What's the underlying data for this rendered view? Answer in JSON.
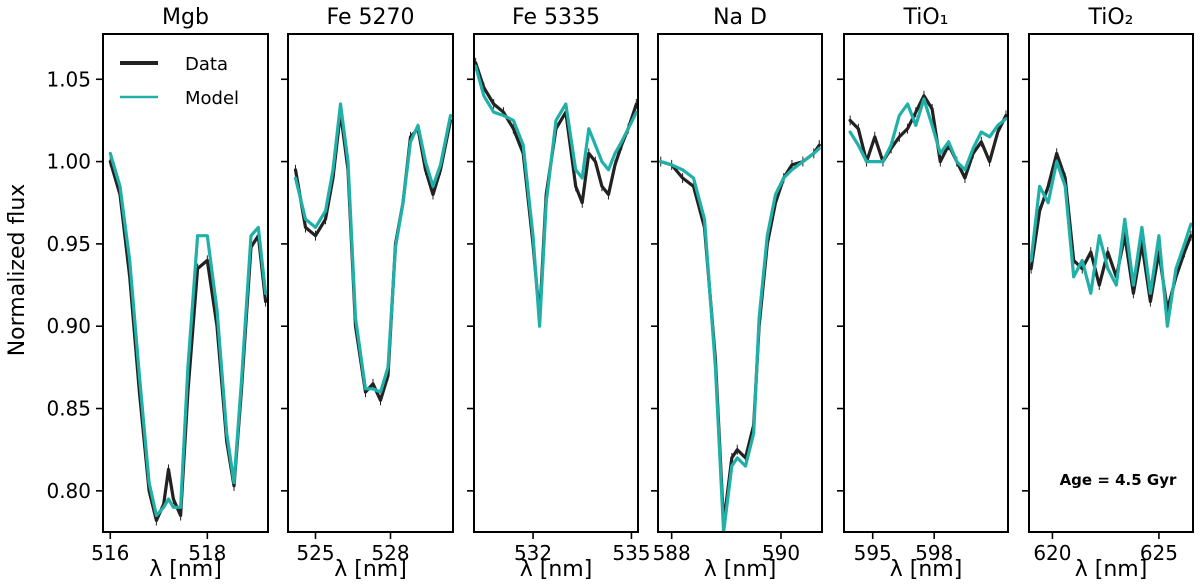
{
  "figure": {
    "ylabel": "Normalized flux",
    "annotation": "Age = 4.5 Gyr",
    "colors": {
      "data": "#222222",
      "model": "#20b0a8"
    }
  },
  "chart_data": [
    {
      "type": "line",
      "title": "Mgb",
      "xlabel": "λ [nm]",
      "xlim": [
        515.85,
        519.25
      ],
      "ylim": [
        0.775,
        1.0775
      ],
      "xticks": [
        516,
        518
      ],
      "yticks": [
        0.8,
        0.85,
        0.9,
        0.95,
        1.0,
        1.05
      ],
      "ytick_labels": [
        "0.80",
        "0.85",
        "0.90",
        "0.95",
        "1.00",
        "1.05"
      ],
      "legend": {
        "position": "top-left",
        "entries": [
          "Data",
          "Model"
        ]
      },
      "series": [
        {
          "name": "Data",
          "x": [
            516.0,
            516.2,
            516.4,
            516.6,
            516.8,
            516.95,
            517.1,
            517.2,
            517.3,
            517.45,
            517.6,
            517.8,
            518.0,
            518.2,
            518.4,
            518.55,
            518.7,
            518.9,
            519.05,
            519.2
          ],
          "y": [
            1.0,
            0.98,
            0.93,
            0.86,
            0.8,
            0.782,
            0.792,
            0.813,
            0.795,
            0.785,
            0.86,
            0.935,
            0.94,
            0.9,
            0.83,
            0.803,
            0.86,
            0.948,
            0.955,
            0.915
          ]
        },
        {
          "name": "Model",
          "x": [
            516.0,
            516.2,
            516.4,
            516.6,
            516.8,
            516.95,
            517.1,
            517.2,
            517.3,
            517.45,
            517.6,
            517.8,
            518.0,
            518.2,
            518.4,
            518.55,
            518.7,
            518.9,
            519.05,
            519.2
          ],
          "y": [
            1.005,
            0.985,
            0.94,
            0.87,
            0.805,
            0.785,
            0.79,
            0.795,
            0.79,
            0.79,
            0.875,
            0.955,
            0.955,
            0.91,
            0.835,
            0.805,
            0.865,
            0.955,
            0.96,
            0.92
          ]
        }
      ]
    },
    {
      "type": "line",
      "title": "Fe 5270",
      "xlabel": "λ [nm]",
      "xlim": [
        523.9,
        530.5
      ],
      "ylim": [
        0.775,
        1.0775
      ],
      "xticks": [
        525,
        528
      ],
      "yticks": [
        0.8,
        0.85,
        0.9,
        0.95,
        1.0,
        1.05
      ],
      "series": [
        {
          "name": "Data",
          "x": [
            524.2,
            524.6,
            525.0,
            525.4,
            525.7,
            526.0,
            526.3,
            526.6,
            527.0,
            527.3,
            527.6,
            527.9,
            528.2,
            528.5,
            528.8,
            529.1,
            529.4,
            529.7,
            530.0,
            530.4
          ],
          "y": [
            0.995,
            0.96,
            0.955,
            0.965,
            0.99,
            1.03,
            0.995,
            0.9,
            0.86,
            0.865,
            0.855,
            0.87,
            0.95,
            0.975,
            1.015,
            1.02,
            0.995,
            0.98,
            0.995,
            1.025
          ]
        },
        {
          "name": "Model",
          "x": [
            524.2,
            524.6,
            525.0,
            525.4,
            525.7,
            526.0,
            526.3,
            526.6,
            527.0,
            527.3,
            527.6,
            527.9,
            528.2,
            528.5,
            528.8,
            529.1,
            529.4,
            529.7,
            530.0,
            530.4
          ],
          "y": [
            0.99,
            0.965,
            0.96,
            0.97,
            0.995,
            1.035,
            1.0,
            0.905,
            0.862,
            0.862,
            0.86,
            0.875,
            0.948,
            0.975,
            1.012,
            1.022,
            1.0,
            0.985,
            0.998,
            1.028
          ]
        }
      ]
    },
    {
      "type": "line",
      "title": "Fe 5335",
      "xlabel": "λ [nm]",
      "xlim": [
        530.2,
        535.2
      ],
      "ylim": [
        0.775,
        1.0775
      ],
      "xticks": [
        532,
        535
      ],
      "yticks": [
        0.8,
        0.85,
        0.9,
        0.95,
        1.0,
        1.05
      ],
      "series": [
        {
          "name": "Data",
          "x": [
            530.25,
            530.5,
            530.8,
            531.1,
            531.4,
            531.7,
            532.0,
            532.2,
            532.4,
            532.7,
            533.0,
            533.3,
            533.5,
            533.7,
            533.9,
            534.1,
            534.3,
            534.5,
            534.7,
            534.9,
            535.15
          ],
          "y": [
            1.06,
            1.045,
            1.035,
            1.03,
            1.02,
            1.005,
            0.95,
            0.905,
            0.98,
            1.02,
            1.03,
            0.985,
            0.975,
            1.005,
            1.0,
            0.985,
            0.98,
            0.998,
            1.01,
            1.02,
            1.035
          ]
        },
        {
          "name": "Model",
          "x": [
            530.25,
            530.5,
            530.8,
            531.1,
            531.4,
            531.7,
            532.0,
            532.2,
            532.4,
            532.7,
            533.0,
            533.3,
            533.5,
            533.7,
            533.9,
            534.1,
            534.3,
            534.5,
            534.7,
            534.9,
            535.15
          ],
          "y": [
            1.058,
            1.04,
            1.03,
            1.028,
            1.025,
            1.01,
            0.955,
            0.9,
            0.975,
            1.025,
            1.035,
            0.995,
            0.99,
            1.02,
            1.01,
            1.0,
            0.995,
            1.005,
            1.012,
            1.02,
            1.03
          ]
        }
      ]
    },
    {
      "type": "line",
      "title": "Na D",
      "xlabel": "λ [nm]",
      "xlim": [
        587.75,
        590.75
      ],
      "ylim": [
        0.775,
        1.0775
      ],
      "xticks": [
        588,
        590
      ],
      "yticks": [
        0.8,
        0.85,
        0.9,
        0.95,
        1.0,
        1.05
      ],
      "series": [
        {
          "name": "Data",
          "x": [
            587.8,
            588.0,
            588.2,
            588.4,
            588.6,
            588.8,
            588.95,
            589.1,
            589.2,
            589.35,
            589.5,
            589.6,
            589.75,
            589.9,
            590.05,
            590.2,
            590.4,
            590.6,
            590.7
          ],
          "y": [
            1.0,
            0.998,
            0.99,
            0.985,
            0.96,
            0.88,
            0.78,
            0.82,
            0.825,
            0.82,
            0.84,
            0.9,
            0.95,
            0.975,
            0.99,
            0.998,
            1.0,
            1.005,
            1.01
          ]
        },
        {
          "name": "Model",
          "x": [
            587.8,
            588.0,
            588.2,
            588.4,
            588.6,
            588.8,
            588.95,
            589.1,
            589.2,
            589.35,
            589.5,
            589.6,
            589.75,
            589.9,
            590.05,
            590.2,
            590.4,
            590.6,
            590.7
          ],
          "y": [
            1.0,
            0.998,
            0.995,
            0.99,
            0.965,
            0.875,
            0.775,
            0.815,
            0.82,
            0.815,
            0.835,
            0.905,
            0.955,
            0.98,
            0.99,
            0.995,
            1.0,
            1.005,
            1.008
          ]
        }
      ]
    },
    {
      "type": "line",
      "title": "TiO₁",
      "xlabel": "λ [nm]",
      "xlim": [
        593.6,
        601.6
      ],
      "ylim": [
        0.775,
        1.0775
      ],
      "xticks": [
        595,
        598
      ],
      "yticks": [
        0.8,
        0.85,
        0.9,
        0.95,
        1.0,
        1.05
      ],
      "series": [
        {
          "name": "Data",
          "x": [
            593.9,
            594.3,
            594.7,
            595.1,
            595.5,
            595.9,
            596.3,
            596.7,
            597.1,
            597.5,
            597.9,
            598.3,
            598.7,
            599.1,
            599.5,
            599.9,
            600.3,
            600.7,
            601.1,
            601.5
          ],
          "y": [
            1.025,
            1.02,
            1.0,
            1.015,
            1.0,
            1.008,
            1.015,
            1.02,
            1.03,
            1.04,
            1.032,
            1.0,
            1.01,
            1.0,
            0.99,
            1.005,
            1.012,
            1.0,
            1.018,
            1.028
          ]
        },
        {
          "name": "Model",
          "x": [
            593.9,
            594.3,
            594.7,
            595.1,
            595.5,
            595.9,
            596.3,
            596.7,
            597.1,
            597.5,
            597.9,
            598.3,
            598.7,
            599.1,
            599.5,
            599.9,
            600.3,
            600.7,
            601.1,
            601.5
          ],
          "y": [
            1.018,
            1.01,
            1.0,
            1.0,
            1.0,
            1.01,
            1.028,
            1.035,
            1.022,
            1.038,
            1.022,
            1.005,
            1.012,
            1.0,
            0.995,
            1.008,
            1.018,
            1.015,
            1.022,
            1.026
          ]
        }
      ]
    },
    {
      "type": "line",
      "title": "TiO₂",
      "xlabel": "λ [nm]",
      "xlim": [
        618.9,
        626.6
      ],
      "ylim": [
        0.775,
        1.0775
      ],
      "xticks": [
        620,
        625
      ],
      "yticks": [
        0.8,
        0.85,
        0.9,
        0.95,
        1.0,
        1.05
      ],
      "annotation": "Age = 4.5 Gyr",
      "series": [
        {
          "name": "Data",
          "x": [
            619.0,
            619.4,
            619.8,
            620.2,
            620.6,
            621.0,
            621.4,
            621.8,
            622.2,
            622.6,
            623.0,
            623.4,
            623.8,
            624.2,
            624.6,
            625.0,
            625.4,
            625.8,
            626.2,
            626.5
          ],
          "y": [
            0.935,
            0.97,
            0.985,
            1.005,
            0.99,
            0.94,
            0.935,
            0.945,
            0.925,
            0.945,
            0.93,
            0.955,
            0.92,
            0.95,
            0.915,
            0.945,
            0.91,
            0.93,
            0.945,
            0.955
          ]
        },
        {
          "name": "Model",
          "x": [
            619.0,
            619.4,
            619.8,
            620.2,
            620.6,
            621.0,
            621.4,
            621.8,
            622.2,
            622.6,
            623.0,
            623.4,
            623.8,
            624.2,
            624.6,
            625.0,
            625.4,
            625.8,
            626.2,
            626.5
          ],
          "y": [
            0.94,
            0.985,
            0.975,
            1.0,
            0.985,
            0.93,
            0.94,
            0.92,
            0.955,
            0.935,
            0.925,
            0.965,
            0.925,
            0.96,
            0.92,
            0.955,
            0.9,
            0.935,
            0.95,
            0.962
          ]
        }
      ]
    }
  ]
}
